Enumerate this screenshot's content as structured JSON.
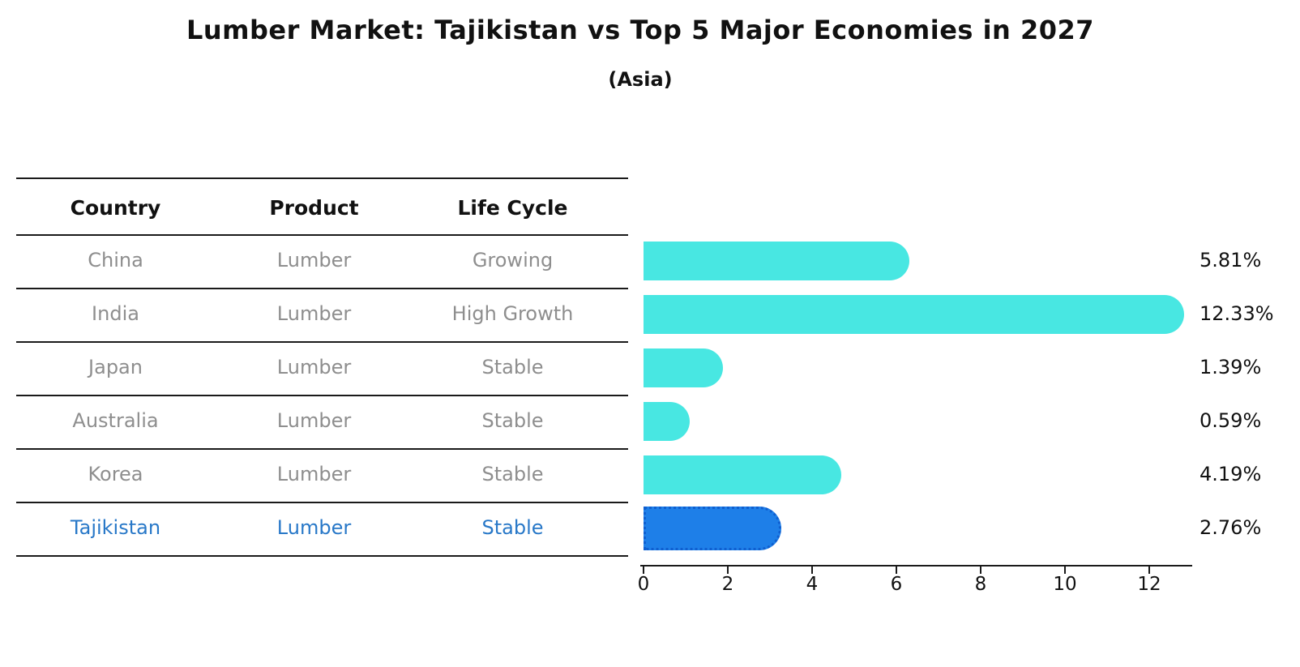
{
  "title": "Lumber Market: Tajikistan vs Top 5 Major Economies in 2027",
  "subtitle": "(Asia)",
  "table": {
    "headers": [
      "Country",
      "Product",
      "Life Cycle"
    ],
    "rows": [
      {
        "country": "China",
        "product": "Lumber",
        "life_cycle": "Growing"
      },
      {
        "country": "India",
        "product": "Lumber",
        "life_cycle": "High Growth"
      },
      {
        "country": "Japan",
        "product": "Lumber",
        "life_cycle": "Stable"
      },
      {
        "country": "Australia",
        "product": "Lumber",
        "life_cycle": "Stable"
      },
      {
        "country": "Korea",
        "product": "Lumber",
        "life_cycle": "Stable"
      },
      {
        "country": "Tajikistan",
        "product": "Lumber",
        "life_cycle": "Stable"
      }
    ],
    "highlighted_country": "Tajikistan"
  },
  "chart_data": {
    "type": "bar",
    "orientation": "horizontal",
    "title": "Lumber Market: Tajikistan vs Top 5 Major Economies in 2027",
    "subtitle": "(Asia)",
    "categories": [
      "China",
      "India",
      "Japan",
      "Australia",
      "Korea",
      "Tajikistan"
    ],
    "values": [
      5.81,
      12.33,
      1.39,
      0.59,
      4.19,
      2.76
    ],
    "value_labels": [
      "5.81%",
      "12.33%",
      "1.39%",
      "0.59%",
      "4.19%",
      "2.76%"
    ],
    "xlabel": "",
    "ylabel": "",
    "xlim": [
      0,
      13
    ],
    "xticks": [
      "0",
      "2",
      "4",
      "6",
      "8",
      "10",
      "12"
    ],
    "grid": false,
    "legend": "none",
    "bar_color": "#48E7E2",
    "highlight_bar_color": "#1E7FE8",
    "highlight_border_style": "dotted",
    "highlight_index": 5
  },
  "colors": {
    "background": "#ffffff",
    "text_primary": "#111111",
    "table_text": "#8e8e8e",
    "highlight_text": "#2878C8",
    "rule_line": "#1a1a1a",
    "bar_cyan": "#48E7E2",
    "bar_blue": "#1E7FE8"
  }
}
